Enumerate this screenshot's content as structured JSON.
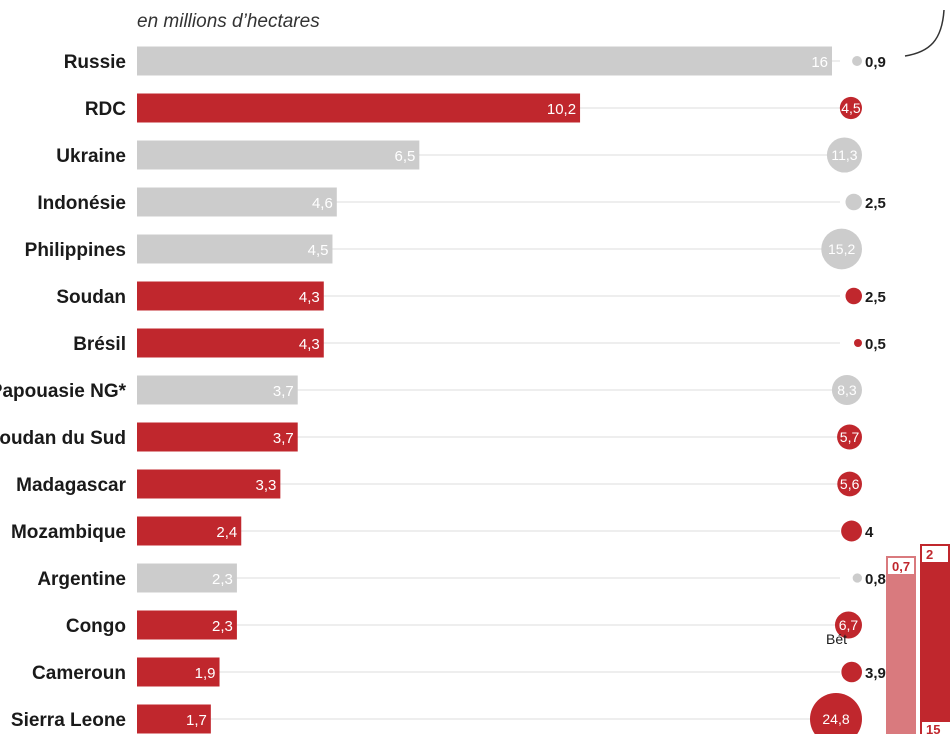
{
  "colors": {
    "highlight": "#c0272d",
    "muted": "#cccccc",
    "guide": "#eeeeee",
    "side_light": "#d97a7e"
  },
  "chart_data": {
    "type": "bar",
    "subtitle": "en millions d’hectares",
    "categories": [
      "Russie",
      "RDC",
      "Ukraine",
      "Indonésie",
      "Philippines",
      "Soudan",
      "Brésil",
      "Papouasie NG*",
      "Soudan du Sud",
      "Madagascar",
      "Mozambique",
      "Argentine",
      "Congo",
      "Cameroun",
      "Sierra Leone"
    ],
    "bar_labels": [
      "16",
      "10,2",
      "6,5",
      "4,6",
      "4,5",
      "4,3",
      "4,3",
      "3,7",
      "3,7",
      "3,3",
      "2,4",
      "2,3",
      "2,3",
      "1,9",
      "1,7"
    ],
    "bar_values": [
      16,
      10.2,
      6.5,
      4.6,
      4.5,
      4.3,
      4.3,
      3.7,
      3.7,
      3.3,
      2.4,
      2.3,
      2.3,
      1.9,
      1.7
    ],
    "bubble_labels": [
      "0,9",
      "4,5",
      "11,3",
      "2,5",
      "15,2",
      "2,5",
      "0,5",
      "8,3",
      "5,7",
      "5,6",
      "4",
      "0,8",
      "6,7",
      "3,9",
      "24,8"
    ],
    "bubble_values": [
      0.9,
      4.5,
      11.3,
      2.5,
      15.2,
      2.5,
      0.5,
      8.3,
      5.7,
      5.6,
      4,
      0.8,
      6.7,
      3.9,
      24.8
    ],
    "highlighted": [
      false,
      true,
      false,
      false,
      false,
      true,
      true,
      false,
      true,
      true,
      true,
      false,
      true,
      true,
      true
    ],
    "xlim": [
      0,
      16
    ]
  },
  "side_panel": {
    "bars": [
      {
        "label": "0,7",
        "value": 0.7,
        "tone": "light"
      },
      {
        "label": "2",
        "value": 2,
        "tone": "dark"
      }
    ],
    "partial_label": "Bét",
    "bottom_partial": "15"
  }
}
